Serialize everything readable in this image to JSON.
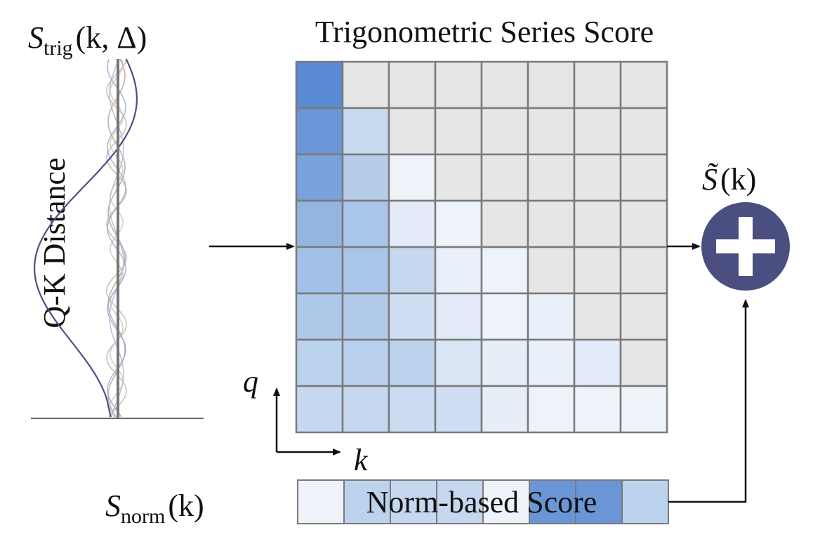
{
  "title": "Trigonometric Series Score",
  "left_label": {
    "main": "S",
    "sub": "trig",
    "args": "(k, Δ)"
  },
  "axis_label": "Q-K Distance",
  "output_label": {
    "main": "S̃",
    "args": "(k)"
  },
  "q_label": "q",
  "k_label": "k",
  "norm_label": {
    "main": "S",
    "sub": "norm",
    "args": "(k)"
  },
  "norm_bar_text": "Norm-based Score",
  "plus_icon": "plus-circle-icon",
  "colors": {
    "cell_inactive": "#e6e6e6",
    "grid_line": "#7a7a7a",
    "plus_circle": "#4a4e80",
    "plus_sign": "#ffffff"
  },
  "matrix": {
    "rows": 8,
    "cols": 8,
    "cells": [
      [
        "#5b8bd4",
        "#e6e6e6",
        "#e6e6e6",
        "#e6e6e6",
        "#e6e6e6",
        "#e6e6e6",
        "#e6e6e6",
        "#e6e6e6"
      ],
      [
        "#6a96d8",
        "#c8daf0",
        "#e6e6e6",
        "#e6e6e6",
        "#e6e6e6",
        "#e6e6e6",
        "#e6e6e6",
        "#e6e6e6"
      ],
      [
        "#79a2dc",
        "#b5cdeb",
        "#eef3fa",
        "#e6e6e6",
        "#e6e6e6",
        "#e6e6e6",
        "#e6e6e6",
        "#e6e6e6"
      ],
      [
        "#93b5e2",
        "#a9c5ea",
        "#e2ebf7",
        "#eef3fa",
        "#e6e6e6",
        "#e6e6e6",
        "#e6e6e6",
        "#e6e6e6"
      ],
      [
        "#a3c1e8",
        "#a9c5ea",
        "#c6d8f0",
        "#e9f0f9",
        "#eef3fa",
        "#e6e6e6",
        "#e6e6e6",
        "#e6e6e6"
      ],
      [
        "#aec8ea",
        "#b2cbeb",
        "#cfdef2",
        "#e2ebf7",
        "#eef3fa",
        "#e9f0f9",
        "#e6e6e6",
        "#e6e6e6"
      ],
      [
        "#bcd3ee",
        "#b8cfed",
        "#bcd3ee",
        "#dbe6f5",
        "#e6eef8",
        "#e9f0f9",
        "#e2ebf7",
        "#e6e6e6"
      ],
      [
        "#c6d8f0",
        "#c6d8f0",
        "#cbdbf1",
        "#cfdef2",
        "#e6eef8",
        "#eef3fa",
        "#eef3fa",
        "#eef3fa"
      ]
    ]
  },
  "norm_cells": [
    "#eef3fa",
    "#bcd3ee",
    "#c6d8f0",
    "#c6d8f0",
    "#eef3fa",
    "#6a96d8",
    "#6a96d8",
    "#bcd3ee"
  ],
  "waves": [
    {
      "color": "#4a5088",
      "amp": 100,
      "period": 720,
      "phase": 1.9
    },
    {
      "color": "#b79c92",
      "amp": 12,
      "period": 130,
      "phase": 0.4
    },
    {
      "color": "#c3b0a8",
      "amp": 14,
      "period": 95,
      "phase": 1.7
    },
    {
      "color": "#a8b5d6",
      "amp": 10,
      "period": 160,
      "phase": 2.8
    },
    {
      "color": "#d0c0b8",
      "amp": 9,
      "period": 75,
      "phase": 0.9
    },
    {
      "color": "#9aa6cc",
      "amp": 13,
      "period": 115,
      "phase": 4.1
    }
  ]
}
